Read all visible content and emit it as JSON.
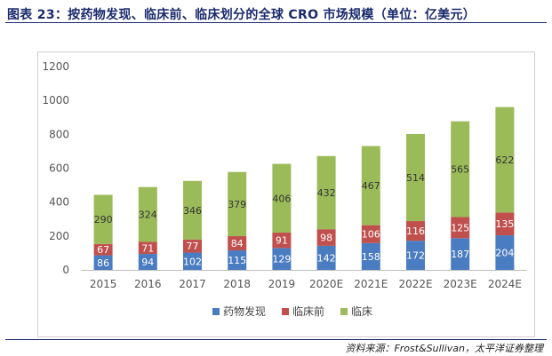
{
  "header": {
    "title": "图表 23：按药物发现、临床前、临床划分的全球 CRO 市场规模（单位：亿美元）"
  },
  "footer": {
    "source": "资料来源：Frost&Sullivan，太平洋证券整理"
  },
  "chart_data": {
    "type": "bar",
    "stacked": true,
    "categories": [
      "2015",
      "2016",
      "2017",
      "2018",
      "2019",
      "2020E",
      "2021E",
      "2022E",
      "2023E",
      "2024E"
    ],
    "series": [
      {
        "name": "药物发现",
        "color": "#4a7cc1",
        "values": [
          86,
          94,
          102,
          115,
          129,
          142,
          158,
          172,
          187,
          204
        ]
      },
      {
        "name": "临床前",
        "color": "#c0504d",
        "values": [
          67,
          71,
          77,
          84,
          91,
          98,
          106,
          116,
          125,
          135
        ]
      },
      {
        "name": "临床",
        "color": "#9bbb59",
        "values": [
          290,
          324,
          346,
          379,
          406,
          432,
          467,
          514,
          565,
          622
        ]
      }
    ],
    "ylim": [
      0,
      1200
    ],
    "yticks": [
      0,
      200,
      400,
      600,
      800,
      1000,
      1200
    ],
    "legend_position": "bottom",
    "grid": false
  }
}
